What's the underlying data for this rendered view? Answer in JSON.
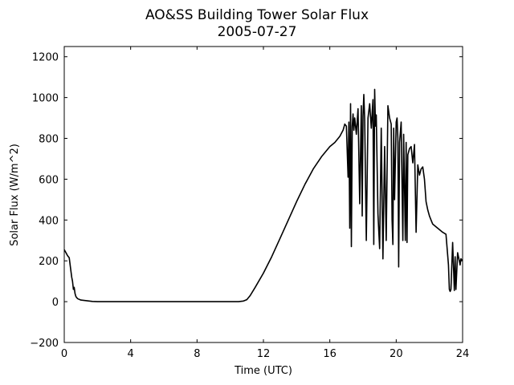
{
  "chart_data": {
    "type": "line",
    "title": "AO&SS Building Tower Solar Flux",
    "subtitle": "2005-07-27",
    "xlabel": "Time (UTC)",
    "ylabel": "Solar Flux (W/m^2)",
    "xlim": [
      0,
      24
    ],
    "ylim": [
      -200,
      1250
    ],
    "xticks": [
      0,
      4,
      8,
      12,
      16,
      20,
      24
    ],
    "yticks": [
      -200,
      0,
      200,
      400,
      600,
      800,
      1000,
      1200
    ],
    "xtick_labels": [
      "0",
      "4",
      "8",
      "12",
      "16",
      "20",
      "24"
    ],
    "ytick_labels": [
      "−200",
      "0",
      "200",
      "400",
      "600",
      "800",
      "1000",
      "1200"
    ],
    "grid": false,
    "line_color": "#000000",
    "series": [
      {
        "x": [
          0,
          0.1,
          0.2,
          0.3,
          0.4,
          0.45,
          0.5,
          0.55,
          0.6,
          0.65,
          0.7,
          0.8,
          1.0,
          1.3,
          1.7,
          2.0,
          4.0,
          8.0,
          10.5,
          10.8,
          11.0,
          11.2,
          11.5,
          12.0,
          12.5,
          13.0,
          13.5,
          14.0,
          14.5,
          15.0,
          15.5,
          16.0,
          16.3,
          16.6,
          16.8,
          16.9,
          17.0,
          17.1,
          17.15,
          17.2,
          17.25,
          17.3,
          17.35,
          17.4,
          17.45,
          17.5,
          17.6,
          17.7,
          17.8,
          17.9,
          17.95,
          18.0,
          18.05,
          18.1,
          18.2,
          18.3,
          18.4,
          18.5,
          18.6,
          18.65,
          18.7,
          18.75,
          18.8,
          18.9,
          19.0,
          19.1,
          19.2,
          19.3,
          19.4,
          19.5,
          19.6,
          19.7,
          19.75,
          19.8,
          19.85,
          19.9,
          20.0,
          20.05,
          20.1,
          20.15,
          20.2,
          20.3,
          20.4,
          20.45,
          20.5,
          20.55,
          20.6,
          20.65,
          20.7,
          20.8,
          20.9,
          21.0,
          21.1,
          21.2,
          21.3,
          21.4,
          21.5,
          21.6,
          21.7,
          21.8,
          21.9,
          22.0,
          22.1,
          22.2,
          22.5,
          22.8,
          23.0,
          23.15,
          23.2,
          23.25,
          23.3,
          23.4,
          23.5,
          23.55,
          23.6,
          23.7,
          23.8,
          23.85,
          23.9,
          24.0
        ],
        "y": [
          255,
          240,
          225,
          215,
          150,
          120,
          100,
          60,
          70,
          40,
          25,
          15,
          8,
          5,
          1,
          0,
          0,
          0,
          0,
          3,
          10,
          30,
          70,
          140,
          220,
          310,
          400,
          490,
          575,
          650,
          710,
          760,
          780,
          810,
          840,
          870,
          860,
          610,
          880,
          360,
          970,
          270,
          860,
          920,
          840,
          900,
          820,
          945,
          480,
          960,
          420,
          910,
          1015,
          890,
          300,
          900,
          970,
          850,
          990,
          280,
          1040,
          860,
          915,
          430,
          260,
          850,
          210,
          760,
          300,
          960,
          900,
          870,
          400,
          280,
          850,
          500,
          880,
          900,
          800,
          170,
          780,
          880,
          300,
          820,
          560,
          300,
          780,
          290,
          720,
          750,
          760,
          680,
          770,
          340,
          670,
          620,
          650,
          660,
          600,
          490,
          450,
          420,
          400,
          380,
          360,
          340,
          330,
          180,
          60,
          50,
          60,
          290,
          55,
          220,
          60,
          240,
          200,
          180,
          210,
          200
        ]
      }
    ]
  }
}
